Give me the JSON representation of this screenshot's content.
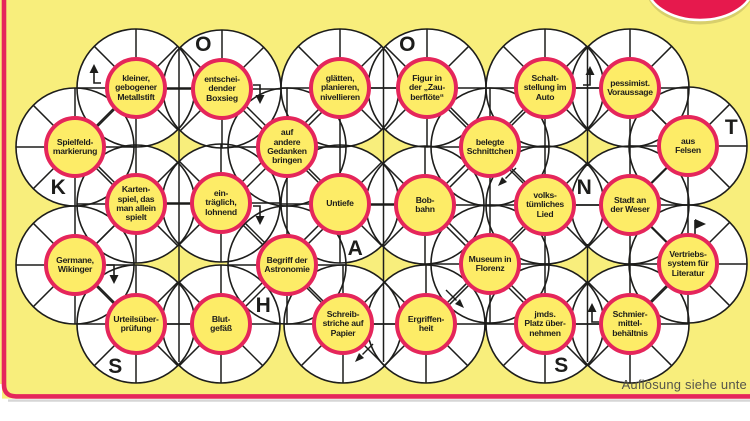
{
  "colors": {
    "background": "#f8ee7c",
    "accent_pink": "#e5265b",
    "hub_fill": "#fdec67",
    "line": "#1d1d1b",
    "badge": "#e6194d"
  },
  "puzzle": {
    "clues": [
      "kleiner,\ngebogener\nMetallstift",
      "entschei-\ndender\nBoxsieg",
      "glätten,\nplanieren,\nnivellieren",
      "Figur in\nder „Zau-\nberflöte“",
      "Schalt-\nstellung im\nAuto",
      "pessimist.\nVoraussage",
      "Spielfeld-\nmarkierung",
      "auf\nandere\nGedanken\nbringen",
      "belegte\nSchnittchen",
      "aus\nFelsen",
      "Karten-\nspiel, das\nman allein\nspielt",
      "ein-\nträglich,\nlohnend",
      "Untiefe",
      "Bob-\nbahn",
      "volks-\ntümliches\nLied",
      "Stadt an\nder Weser",
      "Germane,\nWikinger",
      "Begriff der\nAstronomie",
      "Museum in\nFlorenz",
      "Vertriebs-\nsystem für\nLiteratur",
      "Urteilsüber-\nprüfung",
      "Blut-\ngefäß",
      "Schreib-\nstriche auf\nPapier",
      "Ergriffen-\nheit",
      "jmds.\nPlatz über-\nnehmen",
      "Schmier-\nmittel-\nbehältnis"
    ],
    "prefilled_letters": [
      "O",
      "O",
      "T",
      "K",
      "N",
      "A",
      "H",
      "S",
      "S"
    ],
    "direction_arrows": [
      "arrow-up-icon",
      "arrow-down-icon",
      "arrow-up-icon",
      "arrow-down-icon",
      "arrow-down-icon",
      "arrow-down-left-icon",
      "arrow-down-right-icon",
      "arrow-down-left-icon",
      "flag-right-icon",
      "arrow-up-icon"
    ]
  },
  "footer": {
    "solution_note": "Auflösung siehe unte"
  }
}
